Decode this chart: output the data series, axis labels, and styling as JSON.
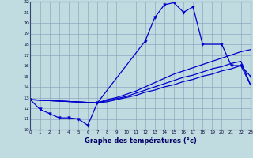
{
  "xlabel": "Graphe des températures (°c)",
  "bg_color": "#c0dce0",
  "grid_color": "#8899bb",
  "line_color": "#0000cc",
  "xlim": [
    0,
    23
  ],
  "ylim": [
    10,
    22
  ],
  "xticks": [
    0,
    1,
    2,
    3,
    4,
    5,
    6,
    7,
    8,
    9,
    10,
    11,
    12,
    13,
    14,
    15,
    16,
    17,
    18,
    19,
    20,
    21,
    22,
    23
  ],
  "yticks": [
    10,
    11,
    12,
    13,
    14,
    15,
    16,
    17,
    18,
    19,
    20,
    21,
    22
  ],
  "line1_x": [
    0,
    1,
    2,
    3,
    4,
    5,
    6,
    7,
    12,
    13,
    14,
    15,
    16,
    17,
    18,
    20,
    21,
    22,
    23
  ],
  "line1_y": [
    12.8,
    11.9,
    11.5,
    11.1,
    11.1,
    11.0,
    10.4,
    12.5,
    18.3,
    20.5,
    21.7,
    21.9,
    21.0,
    21.5,
    18.0,
    18.0,
    16.0,
    16.0,
    15.0
  ],
  "line2_x": [
    0,
    7,
    8,
    9,
    10,
    11,
    12,
    13,
    14,
    15,
    16,
    17,
    18,
    19,
    20,
    21,
    22,
    23
  ],
  "line2_y": [
    12.8,
    12.5,
    12.8,
    13.0,
    13.3,
    13.6,
    14.0,
    14.4,
    14.8,
    15.2,
    15.5,
    15.8,
    16.1,
    16.4,
    16.7,
    17.0,
    17.3,
    17.5
  ],
  "line3_x": [
    0,
    7,
    8,
    9,
    10,
    11,
    12,
    13,
    14,
    15,
    16,
    17,
    18,
    19,
    20,
    21,
    22,
    23
  ],
  "line3_y": [
    12.8,
    12.5,
    12.7,
    12.9,
    13.1,
    13.4,
    13.7,
    14.0,
    14.3,
    14.6,
    14.9,
    15.1,
    15.4,
    15.7,
    15.9,
    16.2,
    16.4,
    14.2
  ],
  "line4_x": [
    0,
    7,
    8,
    9,
    10,
    11,
    12,
    13,
    14,
    15,
    16,
    17,
    18,
    19,
    20,
    21,
    22,
    23
  ],
  "line4_y": [
    12.8,
    12.5,
    12.6,
    12.8,
    13.0,
    13.2,
    13.5,
    13.7,
    14.0,
    14.2,
    14.5,
    14.7,
    15.0,
    15.2,
    15.5,
    15.7,
    16.0,
    14.2
  ]
}
